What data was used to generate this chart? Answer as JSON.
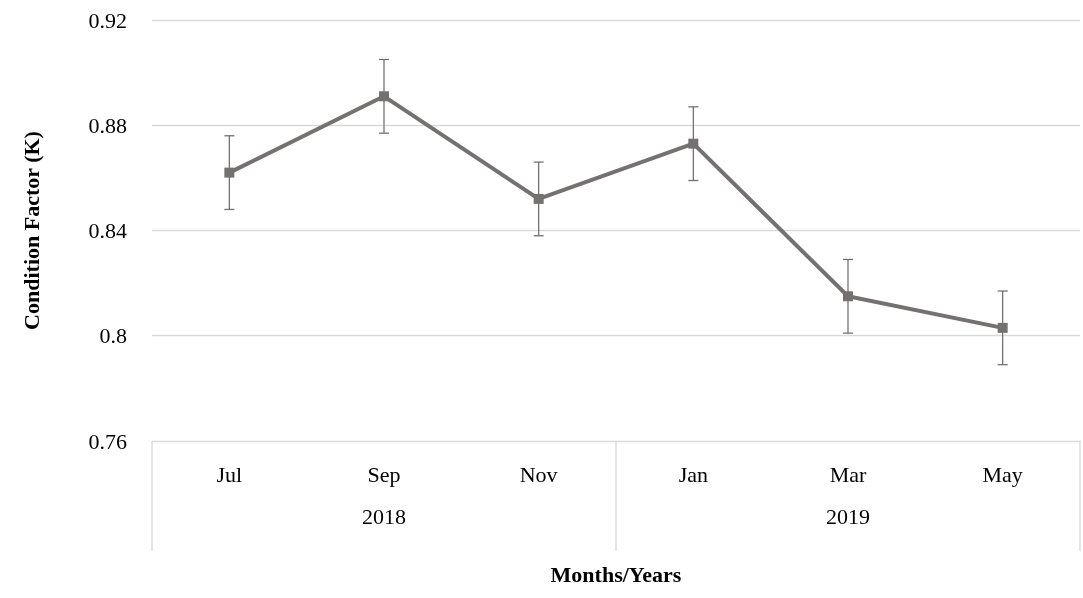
{
  "chart_data": {
    "type": "line",
    "xlabel": "Months/Years",
    "ylabel": "Condition Factor (K)",
    "categories": [
      "Jul",
      "Sep",
      "Nov",
      "Jan",
      "Mar",
      "May"
    ],
    "series": [
      {
        "color": "#767171",
        "values": [
          0.862,
          0.891,
          0.852,
          0.873,
          0.815,
          0.803
        ],
        "errors": [
          0.014,
          0.014,
          0.014,
          0.014,
          0.014,
          0.014
        ]
      }
    ],
    "ylim": [
      0.76,
      0.92
    ],
    "yticks": [
      0.76,
      0.8,
      0.84,
      0.88,
      0.92
    ],
    "grid": "y",
    "marker": "square",
    "line_style": "solid",
    "annotations": [
      "2018",
      "2019"
    ]
  }
}
